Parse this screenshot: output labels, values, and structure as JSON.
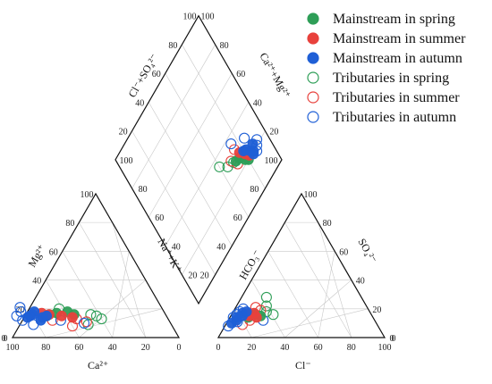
{
  "chart_data": {
    "type": "scatter",
    "diagram": "piper",
    "series": [
      {
        "name": "Mainstream in spring",
        "filled": true,
        "color": "#2e9e57",
        "cation": [
          [
            72,
            15
          ],
          [
            65,
            17
          ],
          [
            58,
            18
          ],
          [
            70,
            16
          ],
          [
            55,
            16
          ]
        ],
        "anion": [
          [
            10,
            16
          ],
          [
            14,
            16
          ],
          [
            18,
            15
          ],
          [
            11,
            14
          ]
        ]
      },
      {
        "name": "Mainstream in summer",
        "filled": true,
        "color": "#e8413c",
        "cation": [
          [
            70,
            16
          ],
          [
            63,
            15
          ],
          [
            57,
            14
          ],
          [
            74,
            17
          ]
        ],
        "anion": [
          [
            9,
            16
          ],
          [
            13,
            17
          ],
          [
            11,
            15
          ],
          [
            16,
            14
          ]
        ]
      },
      {
        "name": "Mainstream in autumn",
        "filled": true,
        "color": "#1f5fd6",
        "cation": [
          [
            80,
            16
          ],
          [
            75,
            14
          ],
          [
            78,
            18
          ],
          [
            82,
            15
          ],
          [
            77,
            12
          ],
          [
            72,
            15
          ],
          [
            84,
            14
          ]
        ],
        "anion": [
          [
            4,
            14
          ],
          [
            6,
            17
          ],
          [
            5,
            12
          ],
          [
            7,
            15
          ],
          [
            3,
            10
          ],
          [
            8,
            18
          ]
        ]
      },
      {
        "name": "Tributaries in spring",
        "filled": false,
        "color": "#2e9e57",
        "cation": [
          [
            45,
            16
          ],
          [
            40,
            13
          ],
          [
            50,
            9
          ],
          [
            42,
            15
          ],
          [
            62,
            20
          ]
        ],
        "anion": [
          [
            25,
            16
          ],
          [
            18,
            22
          ],
          [
            15,
            28
          ],
          [
            20,
            18
          ]
        ]
      },
      {
        "name": "Tributaries in summer",
        "filled": false,
        "color": "#e8413c",
        "cation": [
          [
            55,
            13
          ],
          [
            60,
            8
          ],
          [
            50,
            11
          ],
          [
            70,
            12
          ]
        ],
        "anion": [
          [
            13,
            12
          ],
          [
            16,
            19
          ],
          [
            12,
            21
          ],
          [
            10,
            9
          ]
        ]
      },
      {
        "name": "Tributaries in autumn",
        "filled": false,
        "color": "#1f5fd6",
        "cation": [
          [
            88,
            12
          ],
          [
            86,
            18
          ],
          [
            83,
            9
          ],
          [
            65,
            12
          ],
          [
            52,
            10
          ],
          [
            90,
            15
          ],
          [
            85,
            21
          ]
        ],
        "anion": [
          [
            2,
            8
          ],
          [
            3,
            16
          ],
          [
            5,
            20
          ],
          [
            6,
            11
          ],
          [
            2,
            14
          ],
          [
            21,
            12
          ],
          [
            4,
            18
          ]
        ]
      }
    ],
    "diamond_points": {
      "Mainstream in spring": [
        [
          78,
          22
        ],
        [
          75,
          26
        ],
        [
          80,
          20
        ],
        [
          72,
          27
        ]
      ],
      "Mainstream in summer": [
        [
          80,
          24
        ],
        [
          77,
          28
        ],
        [
          82,
          21
        ]
      ],
      "Mainstream in autumn": [
        [
          84,
          22
        ],
        [
          82,
          25
        ],
        [
          86,
          20
        ],
        [
          88,
          23
        ],
        [
          80,
          26
        ],
        [
          85,
          19
        ]
      ],
      "Tributaries in spring": [
        [
          60,
          35
        ],
        [
          65,
          30
        ],
        [
          70,
          28
        ]
      ],
      "Tributaries in summer": [
        [
          72,
          25
        ],
        [
          75,
          32
        ],
        [
          69,
          30
        ]
      ],
      "Tributaries in autumn": [
        [
          90,
          20
        ],
        [
          92,
          22
        ],
        [
          85,
          30
        ],
        [
          75,
          36
        ],
        [
          88,
          18
        ]
      ]
    },
    "ticks": [
      "0",
      "20",
      "40",
      "60",
      "80",
      "100"
    ],
    "axis_labels": {
      "cation_bottom": "Ca²⁺",
      "cation_left": "Mg²⁺",
      "anion_bottom": "Cl⁻",
      "anion_left": "HCO₃⁻",
      "anion_right": "SO₄²⁻",
      "diamond_left": "Cl⁻+SO₄²⁻",
      "diamond_right": "Ca²⁺+Mg²⁺",
      "center": "Na⁺+K⁺"
    },
    "legend_position": "top-right",
    "grid": true
  }
}
